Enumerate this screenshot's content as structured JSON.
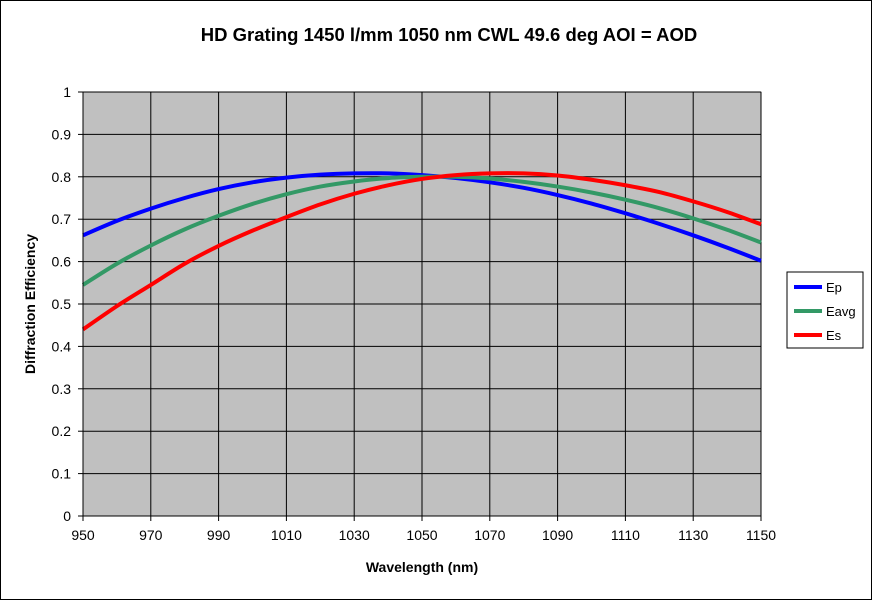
{
  "chart_data": {
    "type": "line",
    "title": "HD Grating 1450 l/mm 1050 nm CWL 49.6 deg AOI = AOD",
    "xlabel": "Wavelength (nm)",
    "ylabel": "Diffraction Efficiency",
    "xlim": [
      950,
      1150
    ],
    "ylim": [
      0,
      1
    ],
    "x_ticks": [
      "950",
      "970",
      "990",
      "1010",
      "1030",
      "1050",
      "1070",
      "1090",
      "1110",
      "1130",
      "1150"
    ],
    "y_ticks": [
      "0",
      "0.1",
      "0.2",
      "0.3",
      "0.4",
      "0.5",
      "0.6",
      "0.7",
      "0.8",
      "0.9",
      "1"
    ],
    "grid": true,
    "plot_background": "#c0c0c0",
    "legend_position": "right",
    "x": [
      950,
      960,
      970,
      980,
      990,
      1000,
      1010,
      1020,
      1030,
      1040,
      1050,
      1060,
      1070,
      1080,
      1090,
      1100,
      1110,
      1120,
      1130,
      1140,
      1150
    ],
    "series": [
      {
        "name": "Ep",
        "color": "#0000ff",
        "values": [
          0.662,
          0.696,
          0.725,
          0.75,
          0.771,
          0.787,
          0.798,
          0.805,
          0.808,
          0.808,
          0.804,
          0.797,
          0.787,
          0.774,
          0.757,
          0.737,
          0.714,
          0.689,
          0.662,
          0.633,
          0.602
        ]
      },
      {
        "name": "Eavg",
        "color": "#339966",
        "values": [
          0.545,
          0.595,
          0.638,
          0.676,
          0.708,
          0.736,
          0.759,
          0.777,
          0.789,
          0.797,
          0.8,
          0.8,
          0.796,
          0.788,
          0.777,
          0.763,
          0.746,
          0.726,
          0.702,
          0.675,
          0.645
        ]
      },
      {
        "name": "Es",
        "color": "#ff0000",
        "values": [
          0.44,
          0.495,
          0.545,
          0.595,
          0.637,
          0.673,
          0.705,
          0.735,
          0.76,
          0.78,
          0.795,
          0.804,
          0.808,
          0.808,
          0.803,
          0.793,
          0.78,
          0.764,
          0.742,
          0.717,
          0.688
        ]
      }
    ]
  }
}
